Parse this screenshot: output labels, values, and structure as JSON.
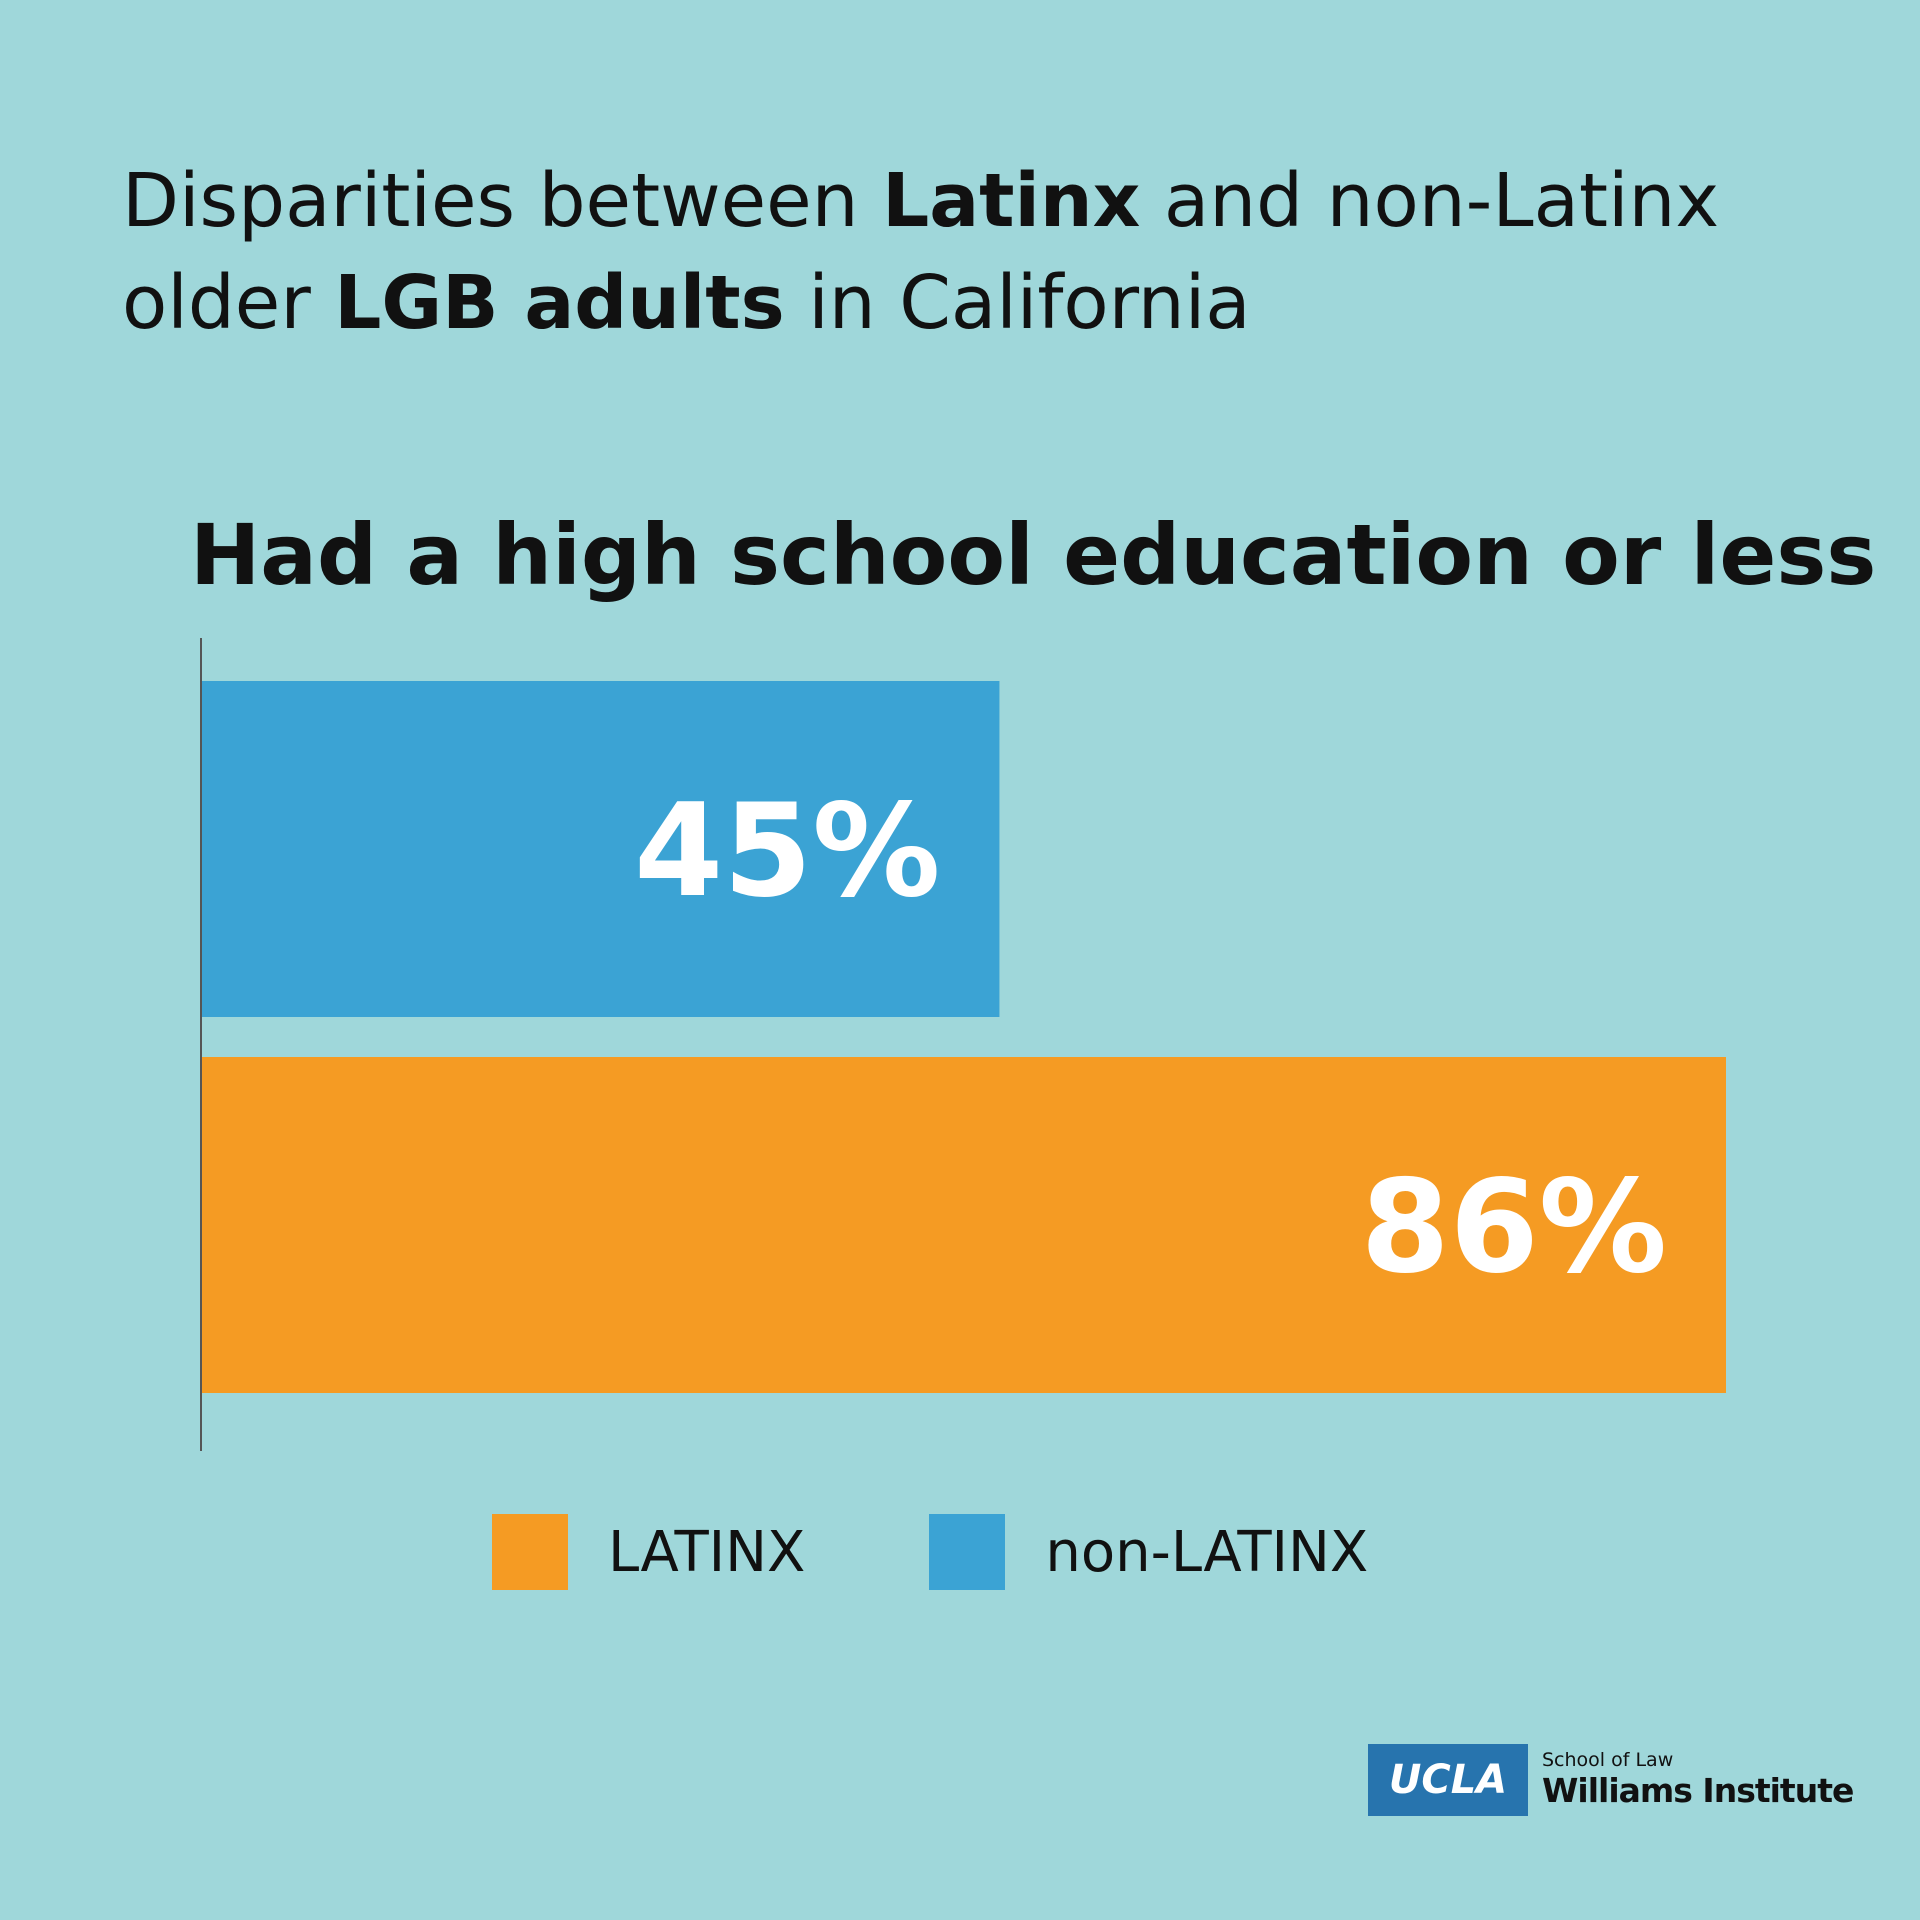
{
  "headline": {
    "part1": "Disparities between ",
    "bold1": "Latinx",
    "part2": " and non-Latinx older ",
    "bold2": "LGB adults",
    "part3": " in California"
  },
  "chart_data": {
    "type": "bar",
    "orientation": "horizontal",
    "title": "Had a high school education or less",
    "categories": [
      "non-LATINX",
      "LATINX"
    ],
    "values": [
      45,
      86
    ],
    "value_labels": [
      "45%",
      "86%"
    ],
    "colors": [
      "#3ba3d4",
      "#f59b23"
    ],
    "xlim": [
      0,
      100
    ],
    "unit": "%",
    "grid": false,
    "legend": {
      "placement": "bottom",
      "items": [
        {
          "label": "LATINX",
          "color": "#f59b23"
        },
        {
          "label": "non-LATINX",
          "color": "#3ba3d4"
        }
      ]
    }
  },
  "logo": {
    "ucla": "UCLA",
    "line1": "School of Law",
    "line2": "Williams Institute",
    "color": "#2774ae"
  }
}
